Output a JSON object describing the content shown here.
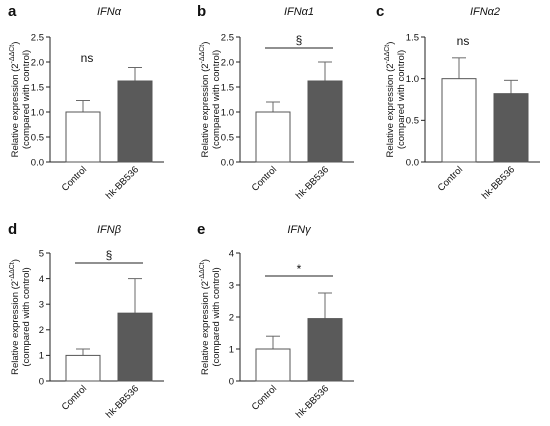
{
  "colors": {
    "control_fill": "#ffffff",
    "treatment_fill": "#5a5a5a",
    "axis": "#222222",
    "error": "#6a6a6a"
  },
  "chart_data": [
    {
      "type": "bar",
      "panel": "a",
      "title": "IFNα",
      "categories": [
        "Control",
        "hk-BB536"
      ],
      "values": [
        1.0,
        1.62
      ],
      "errors": [
        0.23,
        0.27
      ],
      "ylim": [
        0,
        2.5
      ],
      "yticks": [
        "0.0",
        "0.5",
        "1.0",
        "1.5",
        "2.0",
        "2.5"
      ],
      "ylabel_line1": "Relative expression (2",
      "ylabel_sup": "-ΔΔCt",
      "ylabel_line1_end": ")",
      "ylabel_line2": "(compared with control)",
      "significance": {
        "label": "ns",
        "bar": false
      }
    },
    {
      "type": "bar",
      "panel": "b",
      "title": "IFNα1",
      "categories": [
        "Control",
        "hk-BB536"
      ],
      "values": [
        1.0,
        1.62
      ],
      "errors": [
        0.2,
        0.38
      ],
      "ylim": [
        0,
        2.5
      ],
      "yticks": [
        "0.0",
        "0.5",
        "1.0",
        "1.5",
        "2.0",
        "2.5"
      ],
      "ylabel_line1": "Relative expression (2",
      "ylabel_sup": "-ΔΔCt",
      "ylabel_line1_end": ")",
      "ylabel_line2": "(compared with control)",
      "significance": {
        "label": "§",
        "bar": true
      }
    },
    {
      "type": "bar",
      "panel": "c",
      "title": "IFNα2",
      "categories": [
        "Control",
        "hk-BB536"
      ],
      "values": [
        1.0,
        0.82
      ],
      "errors": [
        0.25,
        0.16
      ],
      "ylim": [
        0,
        1.5
      ],
      "yticks": [
        "0.0",
        "0.5",
        "1.0",
        "1.5"
      ],
      "ylabel_line1": "Relative expression (2",
      "ylabel_sup": "-ΔΔCt",
      "ylabel_line1_end": ")",
      "ylabel_line2": "(compared with control)",
      "significance": {
        "label": "ns",
        "bar": false
      }
    },
    {
      "type": "bar",
      "panel": "d",
      "title": "IFNβ",
      "categories": [
        "Control",
        "hk-BB536"
      ],
      "values": [
        1.0,
        2.65
      ],
      "errors": [
        0.25,
        1.35
      ],
      "ylim": [
        0,
        5
      ],
      "yticks": [
        "0",
        "1",
        "2",
        "3",
        "4",
        "5"
      ],
      "ylabel_line1": "Relative expression (2",
      "ylabel_sup": "-ΔΔCt",
      "ylabel_line1_end": ")",
      "ylabel_line2": "(compared with control)",
      "significance": {
        "label": "§",
        "bar": true
      }
    },
    {
      "type": "bar",
      "panel": "e",
      "title": "IFNγ",
      "categories": [
        "Control",
        "hk-BB536"
      ],
      "values": [
        1.0,
        1.95
      ],
      "errors": [
        0.4,
        0.8
      ],
      "ylim": [
        0,
        4
      ],
      "yticks": [
        "0",
        "1",
        "2",
        "3",
        "4"
      ],
      "ylabel_line1": "Relative expression (2",
      "ylabel_sup": "-ΔΔCt",
      "ylabel_line1_end": ")",
      "ylabel_line2": "(compared with control)",
      "significance": {
        "label": "*",
        "bar": true
      }
    }
  ]
}
